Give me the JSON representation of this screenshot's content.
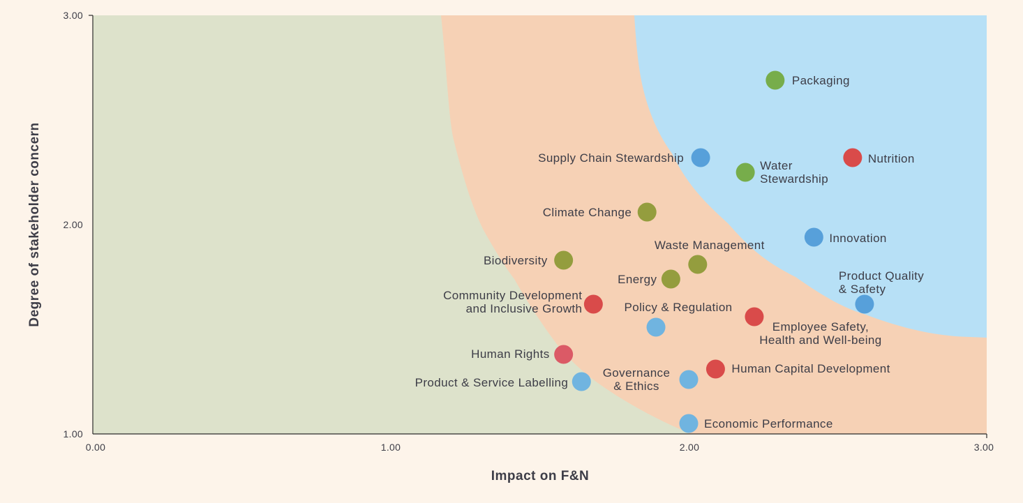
{
  "chart_data": {
    "type": "scatter",
    "title": "",
    "xlabel": "Impact on F&N",
    "ylabel": "Degree of stakeholder concern",
    "xlim": [
      0,
      3
    ],
    "ylim": [
      1,
      3
    ],
    "xticks": [
      "0.00",
      "1.00",
      "2.00",
      "3.00"
    ],
    "yticks": [
      "1.00",
      "2.00",
      "3.00"
    ],
    "grid": false,
    "legend": "none",
    "background_zones": {
      "low": "#dde2cb",
      "medium": "#f6d1b5",
      "high": "#b7e0f6"
    },
    "points": [
      {
        "label": [
          "Packaging"
        ],
        "x": 2.29,
        "y": 2.69,
        "color": "#77ad4b"
      },
      {
        "label": [
          "Supply Chain Stewardship"
        ],
        "x": 2.04,
        "y": 2.32,
        "color": "#57a0da"
      },
      {
        "label": [
          "Water",
          "Stewardship"
        ],
        "x": 2.19,
        "y": 2.25,
        "color": "#77ad4b"
      },
      {
        "label": [
          "Nutrition"
        ],
        "x": 2.55,
        "y": 2.32,
        "color": "#d94b4a"
      },
      {
        "label": [
          "Climate Change"
        ],
        "x": 1.86,
        "y": 2.06,
        "color": "#949d3e"
      },
      {
        "label": [
          "Innovation"
        ],
        "x": 2.42,
        "y": 1.94,
        "color": "#57a0da"
      },
      {
        "label": [
          "Biodiversity"
        ],
        "x": 1.58,
        "y": 1.83,
        "color": "#949d3e"
      },
      {
        "label": [
          "Waste Management"
        ],
        "x": 2.03,
        "y": 1.81,
        "color": "#949d3e"
      },
      {
        "label": [
          "Energy"
        ],
        "x": 1.94,
        "y": 1.74,
        "color": "#949d3e"
      },
      {
        "label": [
          "Product Quality",
          "& Safety"
        ],
        "x": 2.59,
        "y": 1.62,
        "color": "#57a0da"
      },
      {
        "label": [
          "Community Development",
          "and Inclusive Growth"
        ],
        "x": 1.68,
        "y": 1.62,
        "color": "#d94b4a"
      },
      {
        "label": [
          "Policy & Regulation"
        ],
        "x": 1.89,
        "y": 1.51,
        "color": "#70b4e0"
      },
      {
        "label": [
          "Employee Safety,",
          "Health and Well-being"
        ],
        "x": 2.22,
        "y": 1.56,
        "color": "#d94b4a"
      },
      {
        "label": [
          "Human Rights"
        ],
        "x": 1.58,
        "y": 1.38,
        "color": "#db5a66"
      },
      {
        "label": [
          "Human Capital Development"
        ],
        "x": 2.09,
        "y": 1.31,
        "color": "#d94b4a"
      },
      {
        "label": [
          "Product & Service Labelling"
        ],
        "x": 1.64,
        "y": 1.25,
        "color": "#70b4e0"
      },
      {
        "label": [
          "Governance",
          "& Ethics"
        ],
        "x": 2.0,
        "y": 1.26,
        "color": "#70b4e0"
      },
      {
        "label": [
          "Economic Performance"
        ],
        "x": 2.0,
        "y": 1.05,
        "color": "#70b4e0"
      }
    ]
  }
}
